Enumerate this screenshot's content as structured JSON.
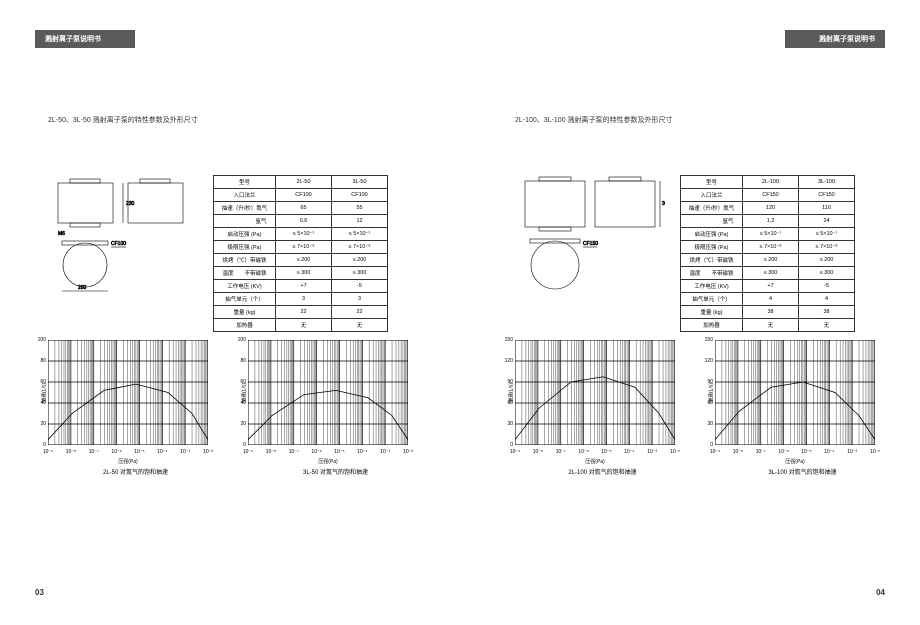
{
  "header_text": "溅射离子泵说明书",
  "page_left_num": "03",
  "page_right_num": "04",
  "left": {
    "title": "2L-50、3L-50 溅射离子泵的特性参数及外形尺寸",
    "drawing": {
      "labels": {
        "height": "230",
        "cf": "CF100",
        "mount": "M6",
        "width": "260"
      }
    },
    "table": {
      "rows": [
        [
          "型号",
          "2L-50",
          "3L-50"
        ],
        [
          "入口法兰",
          "CF100",
          "CF100"
        ],
        [
          "抽速（升/秒）氮气",
          "65",
          "55"
        ],
        [
          "　　　　　　氩气",
          "0.6",
          "12"
        ],
        [
          "启动压强 (Pa)",
          "≤ 5×10⁻¹",
          "≤ 5×10⁻¹"
        ],
        [
          "极限压强 (Pa)",
          "≤ 7×10⁻⁸",
          "≤ 7×10⁻⁸"
        ],
        [
          "烘烤（℃）带磁铁",
          "≤ 200",
          "≤ 200"
        ],
        [
          "温度　　不带磁铁",
          "≤ 300",
          "≤ 300"
        ],
        [
          "工作电压 (KV)",
          "+7",
          "-5"
        ],
        [
          "抽气单元（个）",
          "3",
          "3"
        ],
        [
          "重量 (kg)",
          "22",
          "22"
        ],
        [
          "加热器",
          "无",
          "无"
        ]
      ]
    },
    "chart1": {
      "caption": "2L-50 对氮气的饱和抽速",
      "ylabel": "抽速(L/s)",
      "xlabel": "压强(Pa)",
      "yticks": [
        "0",
        "20",
        "40",
        "60",
        "80",
        "100"
      ],
      "xticks": [
        "10⁻⁹",
        "10⁻⁸",
        "10⁻⁷",
        "10⁻⁶",
        "10⁻⁵",
        "10⁻⁴",
        "10⁻³",
        "10⁻²"
      ],
      "curve": [
        [
          0,
          0.95
        ],
        [
          0.15,
          0.7
        ],
        [
          0.35,
          0.48
        ],
        [
          0.55,
          0.42
        ],
        [
          0.75,
          0.5
        ],
        [
          0.9,
          0.7
        ],
        [
          1.0,
          0.95
        ]
      ],
      "grid_color": "#000",
      "bg": "#fff"
    },
    "chart2": {
      "caption": "3L-50 对氮气的饱和抽速",
      "ylabel": "抽速(L/s)",
      "xlabel": "压强(Pa)",
      "yticks": [
        "0",
        "20",
        "40",
        "60",
        "80",
        "100"
      ],
      "xticks": [
        "10⁻⁹",
        "10⁻⁸",
        "10⁻⁷",
        "10⁻⁶",
        "10⁻⁵",
        "10⁻⁴",
        "10⁻³",
        "10⁻²"
      ],
      "curve": [
        [
          0,
          0.95
        ],
        [
          0.15,
          0.72
        ],
        [
          0.35,
          0.52
        ],
        [
          0.55,
          0.48
        ],
        [
          0.75,
          0.55
        ],
        [
          0.9,
          0.72
        ],
        [
          1.0,
          0.95
        ]
      ],
      "grid_color": "#000",
      "bg": "#fff"
    }
  },
  "right": {
    "title": "2L-100、3L-100 溅射离子泵的特性参数及外形尺寸",
    "drawing": {
      "labels": {
        "height": "300",
        "cf": "CF150"
      }
    },
    "table": {
      "rows": [
        [
          "型号",
          "2L-100",
          "3L-100"
        ],
        [
          "入口法兰",
          "CF150",
          "CF150"
        ],
        [
          "抽速（升/秒）氮气",
          "120",
          "110"
        ],
        [
          "　　　　　　氩气",
          "1.2",
          "24"
        ],
        [
          "启动压强 (Pa)",
          "≤ 5×10⁻¹",
          "≤ 5×10⁻¹"
        ],
        [
          "极限压强 (Pa)",
          "≤ 7×10⁻⁸",
          "≤ 7×10⁻⁸"
        ],
        [
          "烘烤（℃）带磁铁",
          "≤ 200",
          "≤ 200"
        ],
        [
          "温度　　不带磁铁",
          "≤ 300",
          "≤ 300"
        ],
        [
          "工作电压 (KV)",
          "+7",
          "-5"
        ],
        [
          "抽气单元（个）",
          "4",
          "4"
        ],
        [
          "重量 (kg)",
          "38",
          "38"
        ],
        [
          "加热器",
          "无",
          "无"
        ]
      ]
    },
    "chart1": {
      "caption": "2L-100 对氮气的饱和抽速",
      "ylabel": "抽速(L/s)",
      "xlabel": "压强(Pa)",
      "yticks": [
        "0",
        "30",
        "60",
        "90",
        "120",
        "150"
      ],
      "xticks": [
        "10⁻⁹",
        "10⁻⁸",
        "10⁻⁷",
        "10⁻⁶",
        "10⁻⁵",
        "10⁻⁴",
        "10⁻³",
        "10⁻²"
      ],
      "curve": [
        [
          0,
          0.95
        ],
        [
          0.15,
          0.65
        ],
        [
          0.35,
          0.4
        ],
        [
          0.55,
          0.35
        ],
        [
          0.75,
          0.45
        ],
        [
          0.9,
          0.7
        ],
        [
          1.0,
          0.95
        ]
      ],
      "grid_color": "#000",
      "bg": "#fff"
    },
    "chart2": {
      "caption": "3L-100 对氮气的饱和抽速",
      "ylabel": "抽速(L/s)",
      "xlabel": "压强(Pa)",
      "yticks": [
        "0",
        "30",
        "60",
        "90",
        "120",
        "150"
      ],
      "xticks": [
        "10⁻⁹",
        "10⁻⁸",
        "10⁻⁷",
        "10⁻⁶",
        "10⁻⁵",
        "10⁻⁴",
        "10⁻³",
        "10⁻²"
      ],
      "curve": [
        [
          0,
          0.95
        ],
        [
          0.15,
          0.68
        ],
        [
          0.35,
          0.45
        ],
        [
          0.55,
          0.4
        ],
        [
          0.75,
          0.5
        ],
        [
          0.9,
          0.72
        ],
        [
          1.0,
          0.95
        ]
      ],
      "grid_color": "#000",
      "bg": "#fff"
    }
  }
}
